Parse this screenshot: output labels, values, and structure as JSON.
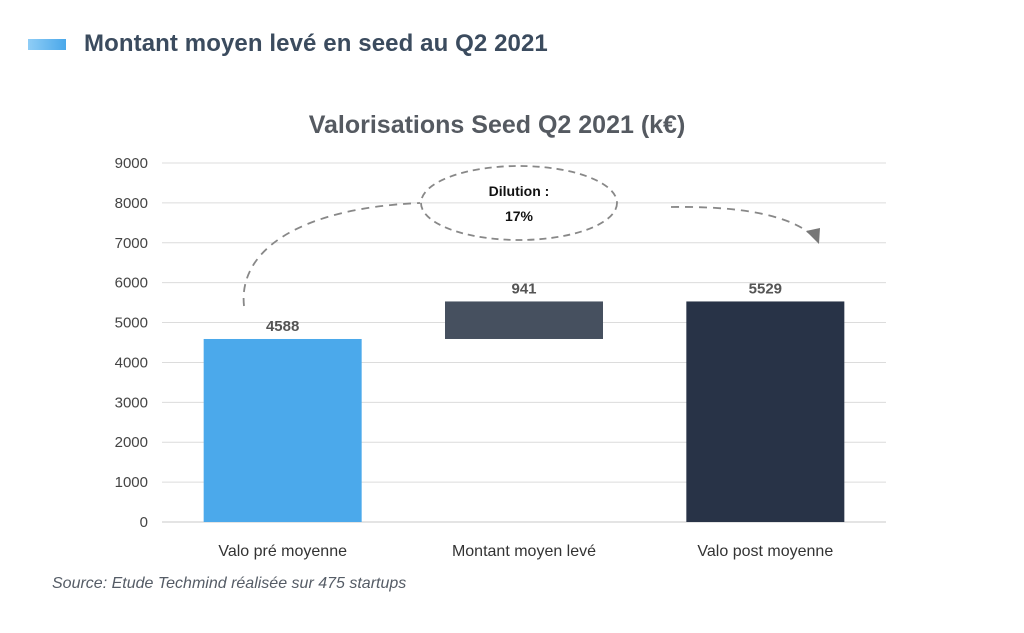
{
  "header": {
    "title": "Montant moyen levé en seed au Q2 2021",
    "marker_color": "#4aa8ea"
  },
  "source": "Source: Etude Techmind réalisée sur 475 startups",
  "chart_data": {
    "type": "bar",
    "subtype": "waterfall",
    "title": "Valorisations Seed Q2 2021 (k€)",
    "categories": [
      "Valo pré moyenne",
      "Montant moyen levé",
      "Valo post moyenne"
    ],
    "values": [
      4588,
      941,
      5529
    ],
    "bases": [
      0,
      4588,
      0
    ],
    "data_labels": [
      "4588",
      "941",
      "5529"
    ],
    "colors": [
      "#4ba9eb",
      "#46505f",
      "#283347"
    ],
    "ylim": [
      0,
      9000
    ],
    "yticks": [
      0,
      1000,
      2000,
      3000,
      4000,
      5000,
      6000,
      7000,
      8000,
      9000
    ],
    "grid": true,
    "legend": "none",
    "annotation": {
      "line1": "Dilution :",
      "line2": "17%"
    }
  }
}
